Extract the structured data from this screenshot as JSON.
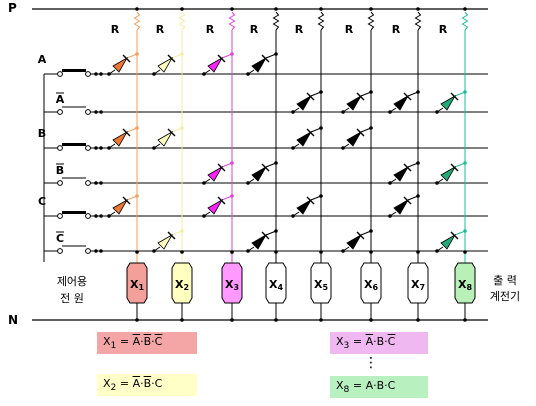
{
  "rails": {
    "top": "P",
    "bottom": "N"
  },
  "resistor_label": "R",
  "inputs": [
    {
      "label": "A"
    },
    {
      "label": "A",
      "negated": true
    },
    {
      "label": "B"
    },
    {
      "label": "B",
      "negated": true
    },
    {
      "label": "C"
    },
    {
      "label": "C",
      "negated": true
    }
  ],
  "control_source_label": [
    "제어용",
    "전  원"
  ],
  "output_relay_label": [
    "출   력",
    "계전기"
  ],
  "outputs": [
    {
      "name": "X",
      "sub": "1",
      "color": "#f4a09a",
      "wire": "#f0a060",
      "diode_rows": [
        0,
        2,
        4
      ],
      "diode_fill": "#ee7733"
    },
    {
      "name": "X",
      "sub": "2",
      "color": "#ffffc0",
      "wire": "#f0f0a0",
      "diode_rows": [
        0,
        2,
        5
      ],
      "diode_fill": "#ffffc0"
    },
    {
      "name": "X",
      "sub": "3",
      "color": "#ff99ff",
      "wire": "#dd44dd",
      "diode_rows": [
        0,
        3,
        4
      ],
      "diode_fill": "#ff22ff"
    },
    {
      "name": "X",
      "sub": "4",
      "color": "#ffffff",
      "wire": "#000000",
      "diode_rows": [
        0,
        3,
        5
      ],
      "diode_fill": "#000000"
    },
    {
      "name": "X",
      "sub": "5",
      "color": "#ffffff",
      "wire": "#000000",
      "diode_rows": [
        1,
        2,
        4
      ],
      "diode_fill": "#000000"
    },
    {
      "name": "X",
      "sub": "6",
      "color": "#ffffff",
      "wire": "#000000",
      "diode_rows": [
        1,
        2,
        5
      ],
      "diode_fill": "#000000"
    },
    {
      "name": "X",
      "sub": "7",
      "color": "#ffffff",
      "wire": "#000000",
      "diode_rows": [
        1,
        3,
        4
      ],
      "diode_fill": "#000000"
    },
    {
      "name": "X",
      "sub": "8",
      "color": "#b8f0b8",
      "wire": "#22bb99",
      "diode_rows": [
        1,
        3,
        5
      ],
      "diode_fill": "#22aa77"
    }
  ],
  "equations": {
    "x1": {
      "lhs": "X",
      "sub": "1",
      "eq": "=",
      "t1": "A",
      "dot1": "·",
      "t2": "B",
      "dot2": "·",
      "t3": "C",
      "color": "#f4a6a6"
    },
    "x2": {
      "lhs": "X",
      "sub": "2",
      "eq": "=",
      "t1": "A",
      "dot1": "·",
      "t2": "B",
      "dot2": "·",
      "t3": "C",
      "color": "#ffffc8"
    },
    "x3": {
      "lhs": "X",
      "sub": "3",
      "eq": "=",
      "t1": "A",
      "dot1": "·",
      "t2": "B",
      "dot2": "·",
      "t3": "C",
      "color": "#f0b8f0"
    },
    "x8": {
      "lhs": "X",
      "sub": "8",
      "eq": "=",
      "t1": "A",
      "dot1": "·",
      "t2": "B",
      "dot2": "·",
      "t3": "C",
      "color": "#b8f0c0"
    },
    "ellipsis": "⋮"
  }
}
